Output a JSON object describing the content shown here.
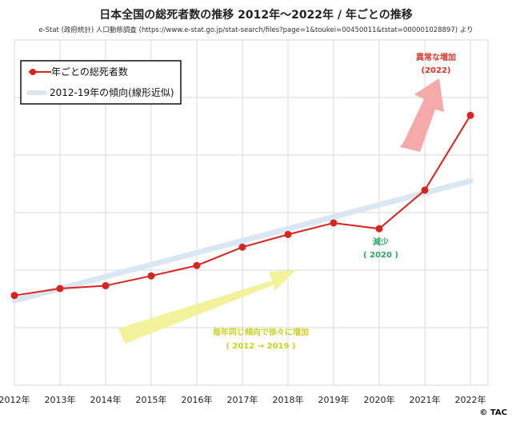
{
  "title": "日本全国の総死者数の推移 2012年〜2022年 / 年ごとの推移",
  "subtitle": "e-Stat (政府統計) 人口動態調査 (https://www.e-stat.go.jp/stat-search/files?page=1&toukei=00450011&tstat=000001028897) より",
  "copyright": "© TAC",
  "colors": {
    "series": "#d9231f",
    "trend": "#dbe6f3",
    "arrow_yellow": "#f2f29a",
    "arrow_red": "#f6a9a9",
    "grid": "#d8d8d8"
  },
  "chart_data": {
    "type": "line",
    "title": "日本全国の総死者数の推移 2012年〜2022年 / 年ごとの推移",
    "xlabel": "",
    "ylabel": "",
    "categories": [
      "2012年",
      "2013年",
      "2014年",
      "2015年",
      "2016年",
      "2017年",
      "2018年",
      "2019年",
      "2020年",
      "2021年",
      "2022年"
    ],
    "ylim": [
      110,
      170
    ],
    "grid": true,
    "legend_position": "top-left",
    "series": [
      {
        "name": "年ごとの総死者数",
        "values": [
          125.6,
          126.8,
          127.3,
          129.0,
          130.8,
          134.0,
          136.2,
          138.2,
          137.2,
          143.9,
          156.9
        ]
      },
      {
        "name": "2012-19年の傾向(線形近似)",
        "trend": true,
        "values": [
          124.7,
          126.8,
          128.8,
          130.9,
          133.0,
          135.1,
          137.2,
          139.3,
          141.3,
          143.4,
          145.5
        ]
      }
    ],
    "annotations": [
      {
        "id": "surge",
        "label": "異常な増加",
        "sub": "(2022)"
      },
      {
        "id": "decrease",
        "label": "減少",
        "sub": "( 2020 )"
      },
      {
        "id": "gradual",
        "label": "毎年同じ傾向で徐々に増加",
        "sub": "( 2012 → 2019 )"
      }
    ]
  }
}
